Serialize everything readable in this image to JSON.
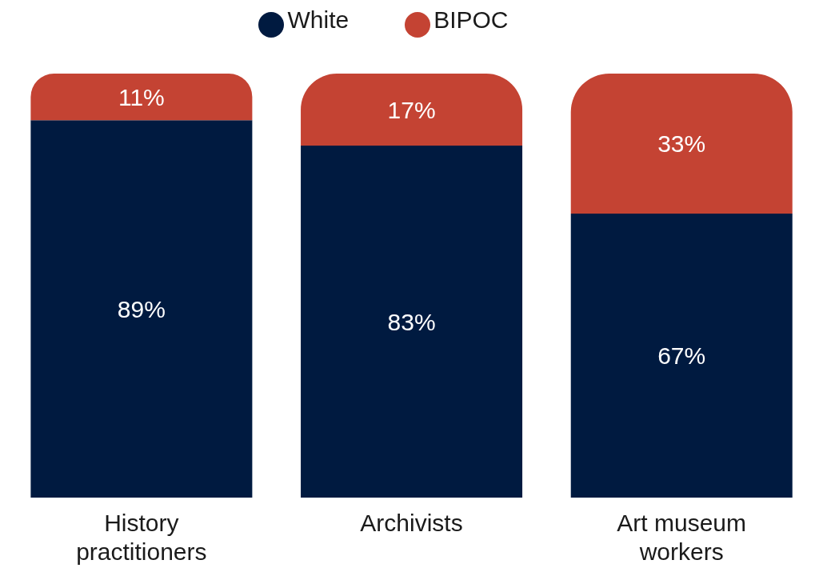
{
  "chart_data": {
    "type": "bar",
    "stacked": true,
    "categories": [
      "History practitioners",
      "Archivists",
      "Art museum workers"
    ],
    "series": [
      {
        "name": "White",
        "color": "#001a40",
        "values": [
          89,
          83,
          67
        ],
        "value_labels": [
          "89%",
          "83%",
          "67%"
        ]
      },
      {
        "name": "BIPOC",
        "color": "#c44333",
        "values": [
          11,
          17,
          33
        ],
        "value_labels": [
          "11%",
          "17%",
          "33%"
        ]
      }
    ],
    "tick_labels": "x",
    "legend": "top"
  }
}
